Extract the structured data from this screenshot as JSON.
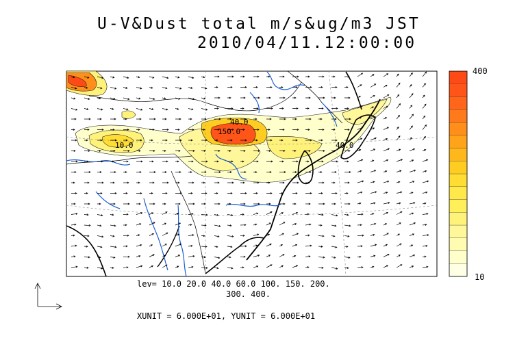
{
  "title": {
    "line1": "U-V&Dust total m/s&ug/m3 JST",
    "line2": "2010/04/11.12:00:00"
  },
  "levels_text": {
    "line1": "lev= 10.0 20.0 40.0 60.0 100. 150. 200.",
    "line2": "300. 400."
  },
  "units_text": "XUNIT = 6.000E+01, YUNIT = 6.000E+01",
  "colorbar": {
    "max_label": "400",
    "min_label": "10",
    "colors": [
      "#ffffe6",
      "#ffffcc",
      "#fffbb0",
      "#fff799",
      "#fff27a",
      "#fff05a",
      "#ffe94a",
      "#ffdd33",
      "#ffcc22",
      "#ffb81c",
      "#ffa31a",
      "#ff8f1a",
      "#ff7a1a",
      "#ff661a",
      "#ff5519",
      "#ff4a15"
    ]
  },
  "contour_labels": [
    "40.0",
    "150.0",
    "40.0",
    "10.0"
  ],
  "contour_levels": [
    10,
    20,
    40,
    60,
    100,
    150,
    200,
    300,
    400
  ],
  "colors": {
    "coast": "#000000",
    "river": "#1a5fd6",
    "border": "#000000"
  }
}
